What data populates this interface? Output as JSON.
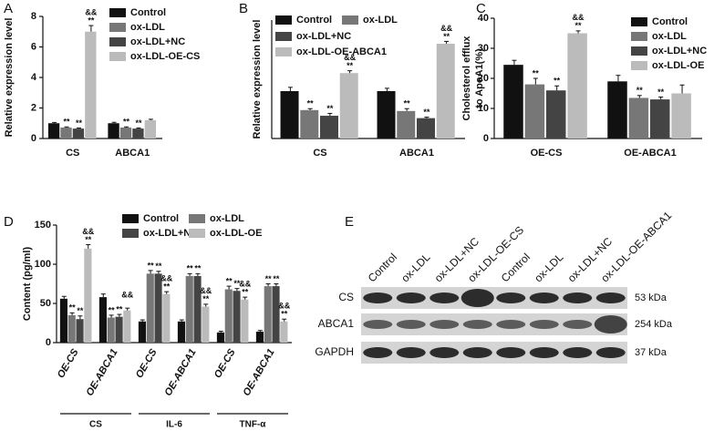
{
  "chart_data": [
    {
      "type": "bar",
      "panel": "A",
      "y_label": "Relative expression level",
      "categories": [
        "CS",
        "ABCA1"
      ],
      "ylim": [
        0,
        8
      ],
      "yticks": [
        0,
        2,
        4,
        6,
        8
      ],
      "series": [
        {
          "name": "Control",
          "color": "#111111",
          "values": [
            1.0,
            1.0
          ],
          "errors": [
            0.05,
            0.06
          ]
        },
        {
          "name": "ox-LDL",
          "color": "#777777",
          "values": [
            0.72,
            0.72
          ],
          "errors": [
            0.04,
            0.04
          ],
          "stars": [
            "**",
            "**"
          ]
        },
        {
          "name": "ox-LDL+NC",
          "color": "#444444",
          "values": [
            0.65,
            0.65
          ],
          "errors": [
            0.04,
            0.04
          ],
          "stars": [
            "**",
            "**"
          ]
        },
        {
          "name": "ox-LDL-OE-CS",
          "color": "#bbbbbb",
          "values": [
            7.0,
            1.2
          ],
          "errors": [
            0.4,
            0.06
          ],
          "stars": [
            "**",
            null
          ],
          "amps": [
            "&&",
            null
          ]
        }
      ]
    },
    {
      "type": "bar",
      "panel": "B",
      "y_label": "Relative expression level",
      "categories": [
        "CS",
        "ABCA1"
      ],
      "ylim": [
        0,
        2.5
      ],
      "series": [
        {
          "name": "Control",
          "color": "#111111",
          "values": [
            1.0,
            1.0
          ],
          "errors": [
            0.08,
            0.06
          ]
        },
        {
          "name": "ox-LDL",
          "color": "#777777",
          "values": [
            0.6,
            0.58
          ],
          "errors": [
            0.03,
            0.05
          ],
          "stars": [
            "**",
            "**"
          ]
        },
        {
          "name": "ox-LDL+NC",
          "color": "#444444",
          "values": [
            0.48,
            0.43
          ],
          "errors": [
            0.05,
            0.02
          ],
          "stars": [
            "**",
            "**"
          ]
        },
        {
          "name": "ox-LDL-OE-ABCA1",
          "color": "#bbbbbb",
          "values": [
            1.38,
            2.0
          ],
          "errors": [
            0.05,
            0.05
          ],
          "stars": [
            "**",
            "**"
          ],
          "amps": [
            "&&",
            "&&"
          ]
        }
      ]
    },
    {
      "type": "bar",
      "panel": "C",
      "y_label": [
        "Cholesterol efflux",
        "to ApoA1(%)"
      ],
      "categories": [
        "OE-CS",
        "OE-ABCA1"
      ],
      "ylim": [
        0,
        40
      ],
      "yticks": [
        0,
        10,
        20,
        30,
        40
      ],
      "series": [
        {
          "name": "Control",
          "color": "#111111",
          "values": [
            24.5,
            19
          ],
          "errors": [
            1.5,
            2
          ]
        },
        {
          "name": "ox-LDL",
          "color": "#777777",
          "values": [
            18,
            13.5
          ],
          "errors": [
            2,
            0.8
          ],
          "stars": [
            "**",
            "**"
          ]
        },
        {
          "name": "ox-LDL+NC",
          "color": "#444444",
          "values": [
            16,
            13
          ],
          "errors": [
            1.5,
            0.8
          ],
          "stars": [
            "**",
            "**"
          ]
        },
        {
          "name": "ox-LDL-OE",
          "color": "#bbbbbb",
          "values": [
            35,
            15
          ],
          "errors": [
            0.8,
            2.8
          ],
          "stars": [
            "**",
            null
          ],
          "amps": [
            "&&",
            null
          ]
        }
      ]
    },
    {
      "type": "bar",
      "panel": "D",
      "y_label": "Content (pg/ml)",
      "categories": [
        "OE-CS",
        "OE-ABCA1",
        "OE-CS",
        "OE-ABCA1",
        "OE-CS",
        "OE-ABCA1"
      ],
      "group_labels": [
        "CS",
        "IL-6",
        "TNF-α"
      ],
      "ylim": [
        0,
        150
      ],
      "yticks": [
        0,
        50,
        100,
        150
      ],
      "series": [
        {
          "name": "Control",
          "color": "#111111",
          "values": [
            56,
            58,
            27,
            27,
            13,
            14
          ],
          "errors": [
            3,
            4,
            2,
            2,
            1.5,
            1.5
          ]
        },
        {
          "name": "ox-LDL",
          "color": "#777777",
          "values": [
            35,
            32,
            88,
            85,
            68,
            72
          ],
          "errors": [
            3,
            3,
            4,
            3,
            4,
            3
          ],
          "stars": [
            "**",
            "**",
            "**",
            "**",
            "**",
            "**"
          ]
        },
        {
          "name": "ox-LDL+NC",
          "color": "#444444",
          "values": [
            30,
            33,
            88,
            85,
            66,
            72
          ],
          "errors": [
            4,
            3,
            3,
            3,
            3,
            3
          ],
          "stars": [
            "**",
            "**",
            "**",
            "**",
            "**",
            "**"
          ]
        },
        {
          "name": "ox-LDL-OE",
          "color": "#bbbbbb",
          "values": [
            120,
            41,
            62,
            46,
            55,
            27
          ],
          "errors": [
            5,
            3,
            3,
            3,
            3,
            3
          ],
          "stars": [
            "**",
            null,
            "**",
            "**",
            "**",
            "**"
          ],
          "amps": [
            "&&",
            "&&",
            "&&",
            "&&",
            "&&",
            "&&"
          ]
        }
      ]
    }
  ],
  "blot": {
    "panel": "E",
    "lanes": [
      "Control",
      "ox-LDL",
      "ox-LDL+NC",
      "ox-LDL-OE-CS",
      "Control",
      "ox-LDL",
      "ox-LDL+NC",
      "ox-LDL-OE-ABCA1"
    ],
    "rows": [
      {
        "label": "CS",
        "size": "53 kDa"
      },
      {
        "label": "ABCA1",
        "size": "254 kDa"
      },
      {
        "label": "GAPDH",
        "size": "37 kDa"
      }
    ]
  }
}
